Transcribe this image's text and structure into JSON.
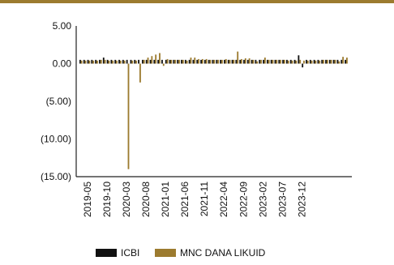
{
  "chart_data": {
    "type": "bar",
    "title": "",
    "xlabel": "",
    "ylabel": "",
    "ylim": [
      -15,
      5
    ],
    "yticks": [
      5,
      0,
      -5,
      -10,
      -15
    ],
    "ytick_labels": [
      "5.00",
      "0.00",
      "(5.00)",
      "(10.00)",
      "(15.00)"
    ],
    "xtick_labels": [
      "2019-05",
      "2019-10",
      "2020-03",
      "2020-08",
      "2021-01",
      "2021-06",
      "2021-11",
      "2022-04",
      "2022-09",
      "2023-02",
      "2023-07",
      "2023-12"
    ],
    "grid": false,
    "legend_position": "bottom-center",
    "series": [
      {
        "name": "ICBI",
        "color": "#111111",
        "values": [
          0.5,
          0.5,
          0.5,
          0.5,
          0.5,
          0.5,
          0.8,
          0.5,
          0.5,
          0.5,
          0.5,
          0.5,
          0.5,
          0.5,
          0.5,
          0.5,
          0.5,
          0.5,
          0.5,
          0.5,
          0.5,
          0.5,
          0.5,
          0.5,
          0.5,
          0.5,
          0.5,
          0.5,
          0.5,
          0.5,
          0.5,
          0.5,
          0.5,
          0.5,
          0.5,
          0.5,
          0.5,
          0.5,
          0.5,
          0.5,
          0.5,
          0.5,
          0.5,
          0.5,
          0.5,
          0.5,
          0.5,
          0.5,
          0.5,
          0.5,
          0.5,
          0.5,
          0.5,
          0.5,
          0.5,
          0.5,
          1.1,
          -0.5,
          0.5,
          0.5,
          0.5,
          0.5,
          0.5,
          0.5,
          0.5,
          0.5,
          0.5,
          0.5,
          0.5
        ]
      },
      {
        "name": "MNC DANA LIKUID",
        "color": "#9c7b2f",
        "values": [
          0.4,
          0.4,
          0.4,
          0.4,
          0.4,
          0.5,
          0.5,
          0.4,
          0.4,
          0.4,
          0.4,
          0.4,
          -14.0,
          0.4,
          0.4,
          -2.5,
          0.5,
          0.8,
          1.0,
          1.2,
          1.4,
          -0.3,
          0.6,
          0.5,
          0.5,
          0.5,
          0.5,
          0.4,
          0.8,
          0.8,
          0.6,
          0.6,
          0.6,
          0.5,
          0.5,
          0.5,
          0.5,
          0.6,
          0.5,
          0.5,
          1.6,
          0.6,
          0.7,
          0.7,
          0.5,
          0.3,
          0.5,
          0.8,
          0.5,
          0.5,
          0.5,
          0.5,
          0.5,
          0.4,
          0.4,
          0.4,
          0.5,
          0.4,
          0.4,
          0.4,
          0.4,
          0.4,
          0.5,
          0.5,
          0.5,
          0.5,
          0.3,
          0.9,
          0.8
        ]
      }
    ]
  }
}
